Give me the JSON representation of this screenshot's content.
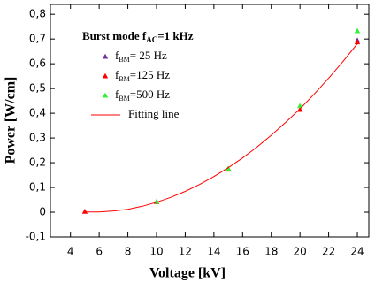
{
  "chart_data": {
    "type": "scatter",
    "xlabel": "Voltage [kV]",
    "ylabel": "Power [W/cm]",
    "legend_title": {
      "text": "Burst mode f",
      "sub": "AC",
      "rest": "=1 kHz"
    },
    "xlim": [
      2.6,
      24.8
    ],
    "xticks": [
      4,
      6,
      8,
      10,
      12,
      14,
      16,
      18,
      20,
      22,
      24
    ],
    "ylim": [
      -0.1,
      0.84
    ],
    "yticks": [
      {
        "value": -0.1,
        "label": "-0,1"
      },
      0,
      {
        "value": 0.1,
        "label": "0,1"
      },
      {
        "value": 0.2,
        "label": "0,2"
      },
      {
        "value": 0.3,
        "label": "0,3"
      },
      {
        "value": 0.4,
        "label": "0,4"
      },
      {
        "value": 0.5,
        "label": "0,5"
      },
      {
        "value": 0.6,
        "label": "0,6"
      },
      {
        "value": 0.7,
        "label": "0,7"
      },
      {
        "value": 0.8,
        "label": "0,8"
      }
    ],
    "series": [
      {
        "name": "f",
        "name_sub": "BM",
        "name_rest": "= 25 Hz",
        "color": "#7030a0",
        "style": "marker",
        "x": [
          24
        ],
        "values": [
          0.695
        ]
      },
      {
        "name": "f",
        "name_sub": "BM",
        "name_rest": "=125 Hz",
        "color": "#ff0000",
        "style": "marker",
        "x": [
          5,
          10,
          15,
          20,
          24
        ],
        "values": [
          0.003,
          0.042,
          0.173,
          0.415,
          0.688
        ]
      },
      {
        "name": "f",
        "name_sub": "BM",
        "name_rest": "=500 Hz",
        "color": "#33ee33",
        "style": "marker",
        "x": [
          10,
          15,
          20,
          24
        ],
        "values": [
          0.043,
          0.177,
          0.43,
          0.733
        ]
      },
      {
        "name": "Fitting line",
        "color": "#ff0000",
        "style": "line",
        "x": [
          5,
          6,
          7,
          8,
          9,
          10,
          11,
          12,
          13,
          14,
          15,
          16,
          17,
          18,
          19,
          20,
          21,
          22,
          23,
          24
        ],
        "values": [
          0.001,
          0.001,
          0.005,
          0.012,
          0.024,
          0.04,
          0.06,
          0.084,
          0.112,
          0.144,
          0.18,
          0.219,
          0.263,
          0.311,
          0.363,
          0.418,
          0.478,
          0.542,
          0.609,
          0.681
        ]
      }
    ]
  }
}
